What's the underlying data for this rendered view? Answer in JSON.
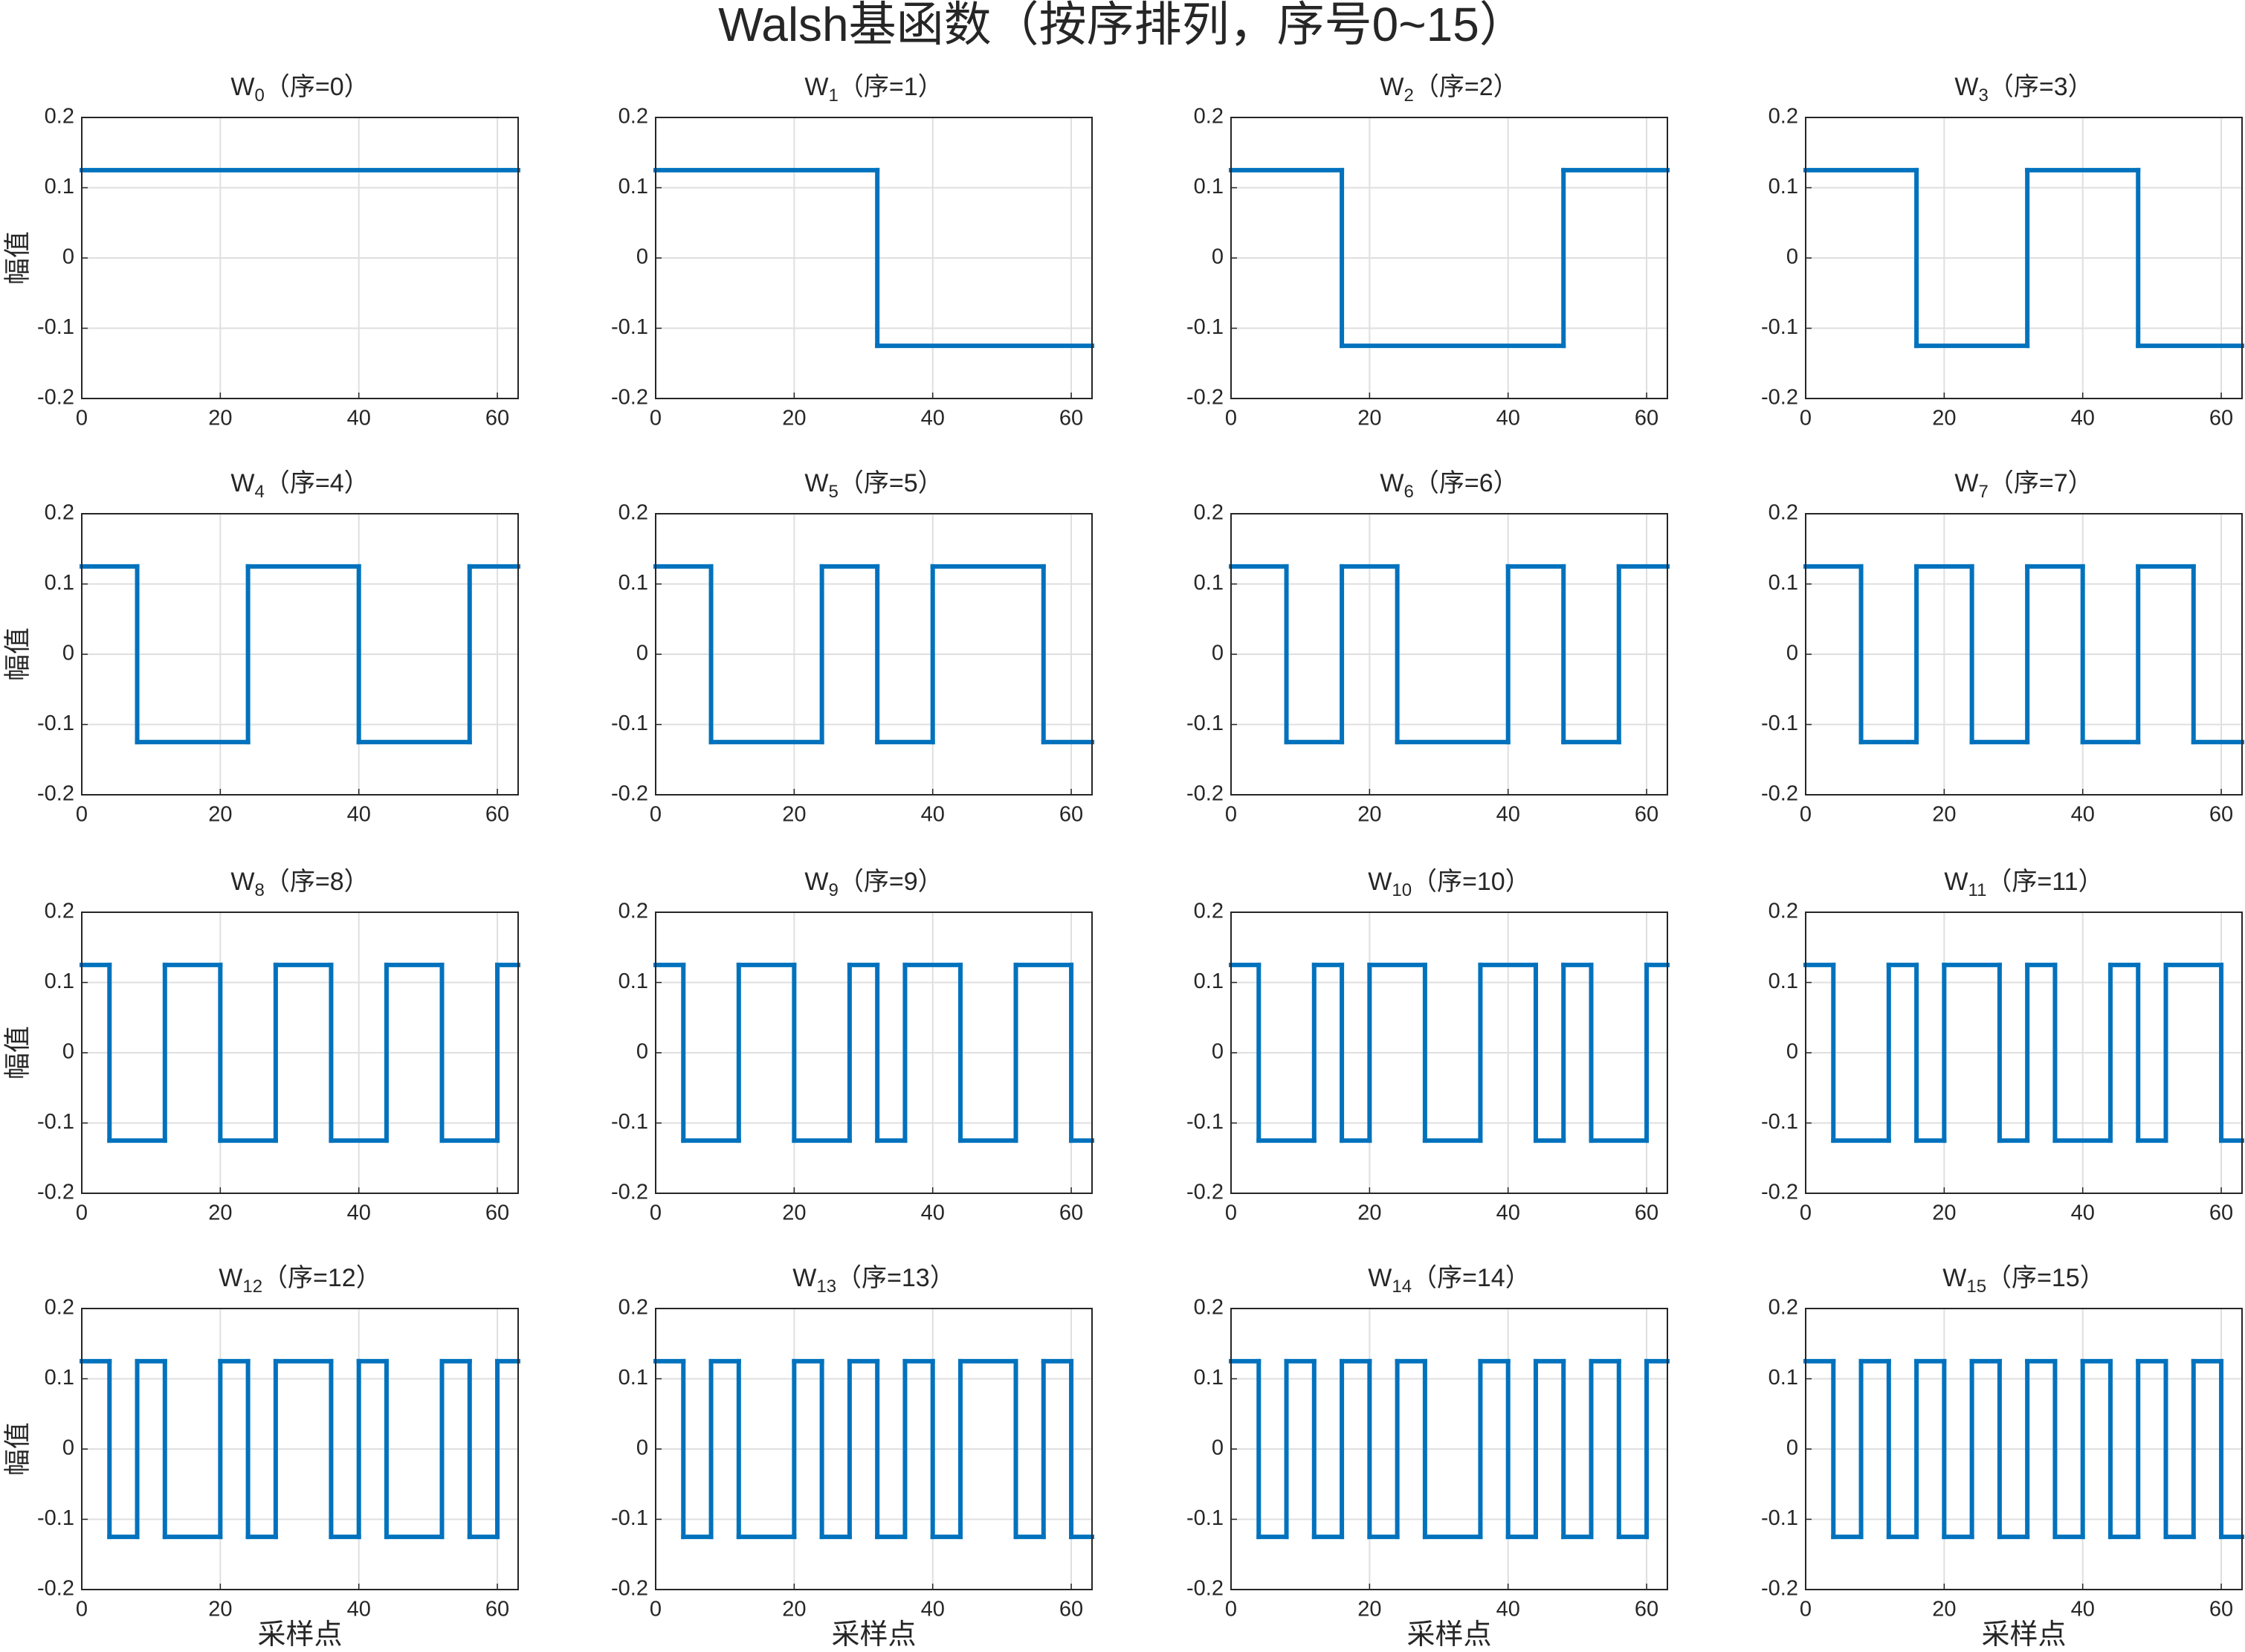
{
  "title": "Walsh基函数（按序排列，序号0~15）",
  "chart_data": [
    {
      "type": "stairs",
      "title": {
        "main": "W",
        "subscript": "0",
        "suffix": "（序=0）"
      },
      "ylabel": "幅值",
      "x": [
        0
      ],
      "values": [
        0.125
      ],
      "color": "#0072bd",
      "xlim": [
        0,
        63
      ],
      "ylim": [
        -0.2,
        0.2
      ],
      "xticks": [
        0,
        20,
        40,
        60
      ],
      "yticks": [
        -0.2,
        -0.1,
        0,
        0.1,
        0.2
      ],
      "grid": true
    },
    {
      "type": "stairs",
      "title": {
        "main": "W",
        "subscript": "1",
        "suffix": "（序=1）"
      },
      "x": [
        0,
        32
      ],
      "values": [
        0.125,
        -0.125
      ],
      "color": "#0072bd",
      "xlim": [
        0,
        63
      ],
      "ylim": [
        -0.2,
        0.2
      ],
      "xticks": [
        0,
        20,
        40,
        60
      ],
      "yticks": [
        -0.2,
        -0.1,
        0,
        0.1,
        0.2
      ],
      "grid": true
    },
    {
      "type": "stairs",
      "title": {
        "main": "W",
        "subscript": "2",
        "suffix": "（序=2）"
      },
      "x": [
        0,
        16,
        48
      ],
      "values": [
        0.125,
        -0.125,
        0.125
      ],
      "color": "#0072bd",
      "xlim": [
        0,
        63
      ],
      "ylim": [
        -0.2,
        0.2
      ],
      "xticks": [
        0,
        20,
        40,
        60
      ],
      "yticks": [
        -0.2,
        -0.1,
        0,
        0.1,
        0.2
      ],
      "grid": true
    },
    {
      "type": "stairs",
      "title": {
        "main": "W",
        "subscript": "3",
        "suffix": "（序=3）"
      },
      "x": [
        0,
        16,
        32,
        48
      ],
      "values": [
        0.125,
        -0.125,
        0.125,
        -0.125
      ],
      "color": "#0072bd",
      "xlim": [
        0,
        63
      ],
      "ylim": [
        -0.2,
        0.2
      ],
      "xticks": [
        0,
        20,
        40,
        60
      ],
      "yticks": [
        -0.2,
        -0.1,
        0,
        0.1,
        0.2
      ],
      "grid": true
    },
    {
      "type": "stairs",
      "title": {
        "main": "W",
        "subscript": "4",
        "suffix": "（序=4）"
      },
      "ylabel": "幅值",
      "x": [
        0,
        8,
        24,
        40,
        56
      ],
      "values": [
        0.125,
        -0.125,
        0.125,
        -0.125,
        0.125
      ],
      "color": "#0072bd",
      "xlim": [
        0,
        63
      ],
      "ylim": [
        -0.2,
        0.2
      ],
      "xticks": [
        0,
        20,
        40,
        60
      ],
      "yticks": [
        -0.2,
        -0.1,
        0,
        0.1,
        0.2
      ],
      "grid": true
    },
    {
      "type": "stairs",
      "title": {
        "main": "W",
        "subscript": "5",
        "suffix": "（序=5）"
      },
      "x": [
        0,
        8,
        24,
        32,
        40,
        56
      ],
      "values": [
        0.125,
        -0.125,
        0.125,
        -0.125,
        0.125,
        -0.125
      ],
      "color": "#0072bd",
      "xlim": [
        0,
        63
      ],
      "ylim": [
        -0.2,
        0.2
      ],
      "xticks": [
        0,
        20,
        40,
        60
      ],
      "yticks": [
        -0.2,
        -0.1,
        0,
        0.1,
        0.2
      ],
      "grid": true
    },
    {
      "type": "stairs",
      "title": {
        "main": "W",
        "subscript": "6",
        "suffix": "（序=6）"
      },
      "x": [
        0,
        8,
        16,
        24,
        40,
        48,
        56
      ],
      "values": [
        0.125,
        -0.125,
        0.125,
        -0.125,
        0.125,
        -0.125,
        0.125
      ],
      "color": "#0072bd",
      "xlim": [
        0,
        63
      ],
      "ylim": [
        -0.2,
        0.2
      ],
      "xticks": [
        0,
        20,
        40,
        60
      ],
      "yticks": [
        -0.2,
        -0.1,
        0,
        0.1,
        0.2
      ],
      "grid": true
    },
    {
      "type": "stairs",
      "title": {
        "main": "W",
        "subscript": "7",
        "suffix": "（序=7）"
      },
      "x": [
        0,
        8,
        16,
        24,
        32,
        40,
        48,
        56
      ],
      "values": [
        0.125,
        -0.125,
        0.125,
        -0.125,
        0.125,
        -0.125,
        0.125,
        -0.125
      ],
      "color": "#0072bd",
      "xlim": [
        0,
        63
      ],
      "ylim": [
        -0.2,
        0.2
      ],
      "xticks": [
        0,
        20,
        40,
        60
      ],
      "yticks": [
        -0.2,
        -0.1,
        0,
        0.1,
        0.2
      ],
      "grid": true
    },
    {
      "type": "stairs",
      "title": {
        "main": "W",
        "subscript": "8",
        "suffix": "（序=8）"
      },
      "ylabel": "幅值",
      "x": [
        0,
        4,
        12,
        20,
        28,
        36,
        44,
        52,
        60
      ],
      "values": [
        0.125,
        -0.125,
        0.125,
        -0.125,
        0.125,
        -0.125,
        0.125,
        -0.125,
        0.125
      ],
      "color": "#0072bd",
      "xlim": [
        0,
        63
      ],
      "ylim": [
        -0.2,
        0.2
      ],
      "xticks": [
        0,
        20,
        40,
        60
      ],
      "yticks": [
        -0.2,
        -0.1,
        0,
        0.1,
        0.2
      ],
      "grid": true
    },
    {
      "type": "stairs",
      "title": {
        "main": "W",
        "subscript": "9",
        "suffix": "（序=9）"
      },
      "x": [
        0,
        4,
        12,
        20,
        28,
        32,
        36,
        44,
        52,
        60
      ],
      "values": [
        0.125,
        -0.125,
        0.125,
        -0.125,
        0.125,
        -0.125,
        0.125,
        -0.125,
        0.125,
        -0.125
      ],
      "color": "#0072bd",
      "xlim": [
        0,
        63
      ],
      "ylim": [
        -0.2,
        0.2
      ],
      "xticks": [
        0,
        20,
        40,
        60
      ],
      "yticks": [
        -0.2,
        -0.1,
        0,
        0.1,
        0.2
      ],
      "grid": true
    },
    {
      "type": "stairs",
      "title": {
        "main": "W",
        "subscript": "10",
        "suffix": "（序=10）"
      },
      "x": [
        0,
        4,
        12,
        16,
        20,
        28,
        36,
        44,
        48,
        52,
        60
      ],
      "values": [
        0.125,
        -0.125,
        0.125,
        -0.125,
        0.125,
        -0.125,
        0.125,
        -0.125,
        0.125,
        -0.125,
        0.125
      ],
      "color": "#0072bd",
      "xlim": [
        0,
        63
      ],
      "ylim": [
        -0.2,
        0.2
      ],
      "xticks": [
        0,
        20,
        40,
        60
      ],
      "yticks": [
        -0.2,
        -0.1,
        0,
        0.1,
        0.2
      ],
      "grid": true
    },
    {
      "type": "stairs",
      "title": {
        "main": "W",
        "subscript": "11",
        "suffix": "（序=11）"
      },
      "x": [
        0,
        4,
        12,
        16,
        20,
        28,
        32,
        36,
        44,
        48,
        52,
        60
      ],
      "values": [
        0.125,
        -0.125,
        0.125,
        -0.125,
        0.125,
        -0.125,
        0.125,
        -0.125,
        0.125,
        -0.125,
        0.125,
        -0.125
      ],
      "color": "#0072bd",
      "xlim": [
        0,
        63
      ],
      "ylim": [
        -0.2,
        0.2
      ],
      "xticks": [
        0,
        20,
        40,
        60
      ],
      "yticks": [
        -0.2,
        -0.1,
        0,
        0.1,
        0.2
      ],
      "grid": true
    },
    {
      "type": "stairs",
      "title": {
        "main": "W",
        "subscript": "12",
        "suffix": "（序=12）"
      },
      "ylabel": "幅值",
      "xlabel": "采样点",
      "x": [
        0,
        4,
        8,
        12,
        20,
        24,
        28,
        36,
        40,
        44,
        52,
        56,
        60
      ],
      "values": [
        0.125,
        -0.125,
        0.125,
        -0.125,
        0.125,
        -0.125,
        0.125,
        -0.125,
        0.125,
        -0.125,
        0.125,
        -0.125,
        0.125
      ],
      "color": "#0072bd",
      "xlim": [
        0,
        63
      ],
      "ylim": [
        -0.2,
        0.2
      ],
      "xticks": [
        0,
        20,
        40,
        60
      ],
      "yticks": [
        -0.2,
        -0.1,
        0,
        0.1,
        0.2
      ],
      "grid": true
    },
    {
      "type": "stairs",
      "title": {
        "main": "W",
        "subscript": "13",
        "suffix": "（序=13）"
      },
      "xlabel": "采样点",
      "x": [
        0,
        4,
        8,
        12,
        20,
        24,
        28,
        32,
        36,
        40,
        44,
        52,
        56,
        60
      ],
      "values": [
        0.125,
        -0.125,
        0.125,
        -0.125,
        0.125,
        -0.125,
        0.125,
        -0.125,
        0.125,
        -0.125,
        0.125,
        -0.125,
        0.125,
        -0.125
      ],
      "color": "#0072bd",
      "xlim": [
        0,
        63
      ],
      "ylim": [
        -0.2,
        0.2
      ],
      "xticks": [
        0,
        20,
        40,
        60
      ],
      "yticks": [
        -0.2,
        -0.1,
        0,
        0.1,
        0.2
      ],
      "grid": true
    },
    {
      "type": "stairs",
      "title": {
        "main": "W",
        "subscript": "14",
        "suffix": "（序=14）"
      },
      "xlabel": "采样点",
      "x": [
        0,
        4,
        8,
        12,
        16,
        20,
        24,
        28,
        36,
        40,
        44,
        48,
        52,
        56,
        60
      ],
      "values": [
        0.125,
        -0.125,
        0.125,
        -0.125,
        0.125,
        -0.125,
        0.125,
        -0.125,
        0.125,
        -0.125,
        0.125,
        -0.125,
        0.125,
        -0.125,
        0.125
      ],
      "color": "#0072bd",
      "xlim": [
        0,
        63
      ],
      "ylim": [
        -0.2,
        0.2
      ],
      "xticks": [
        0,
        20,
        40,
        60
      ],
      "yticks": [
        -0.2,
        -0.1,
        0,
        0.1,
        0.2
      ],
      "grid": true
    },
    {
      "type": "stairs",
      "title": {
        "main": "W",
        "subscript": "15",
        "suffix": "（序=15）"
      },
      "xlabel": "采样点",
      "x": [
        0,
        4,
        8,
        12,
        16,
        20,
        24,
        28,
        32,
        36,
        40,
        44,
        48,
        52,
        56,
        60
      ],
      "values": [
        0.125,
        -0.125,
        0.125,
        -0.125,
        0.125,
        -0.125,
        0.125,
        -0.125,
        0.125,
        -0.125,
        0.125,
        -0.125,
        0.125,
        -0.125,
        0.125,
        -0.125
      ],
      "color": "#0072bd",
      "xlim": [
        0,
        63
      ],
      "ylim": [
        -0.2,
        0.2
      ],
      "xticks": [
        0,
        20,
        40,
        60
      ],
      "yticks": [
        -0.2,
        -0.1,
        0,
        0.1,
        0.2
      ],
      "grid": true
    }
  ]
}
